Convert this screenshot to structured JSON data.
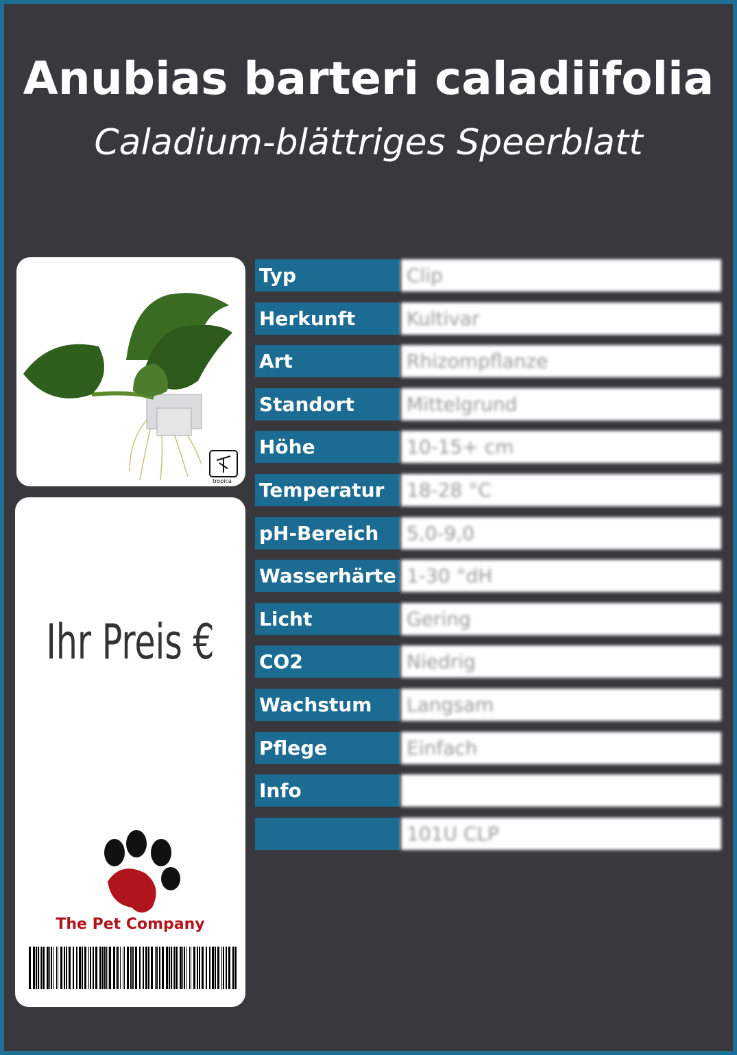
{
  "header": {
    "title": "Anubias barteri caladiifolia",
    "subtitle": "Caladium-blättriges Speerblatt"
  },
  "image": {
    "logo": "tropica"
  },
  "price": {
    "label": "Ihr Preis €",
    "brand": "The Pet Company"
  },
  "table": {
    "rows": [
      {
        "label": "Typ",
        "value": "Clip"
      },
      {
        "label": "Herkunft",
        "value": "Kultivar"
      },
      {
        "label": "Art",
        "value": "Rhizompflanze"
      },
      {
        "label": "Standort",
        "value": "Mittelgrund"
      },
      {
        "label": "Höhe",
        "value": "10-15+ cm"
      },
      {
        "label": "Temperatur",
        "value": "18-28 °C"
      },
      {
        "label": "pH-Bereich",
        "value": "5,0-9,0"
      },
      {
        "label": "Wasserhärte",
        "value": "1-30 °dH"
      },
      {
        "label": "Licht",
        "value": "Gering"
      },
      {
        "label": "CO2",
        "value": "Niedrig"
      },
      {
        "label": "Wachstum",
        "value": "Langsam"
      },
      {
        "label": "Pflege",
        "value": "Einfach"
      },
      {
        "label": "Info"
      },
      {
        "value": "101U CLP"
      }
    ]
  }
}
